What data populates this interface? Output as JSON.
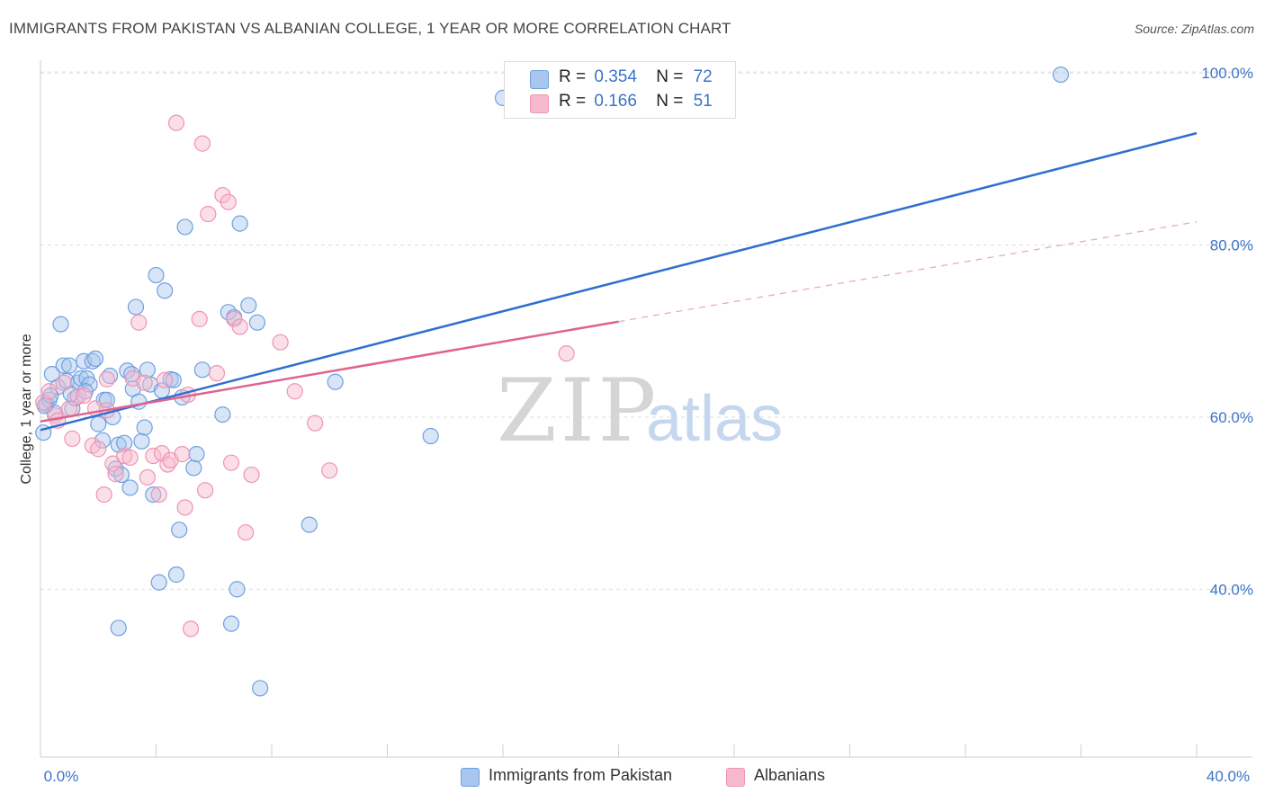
{
  "title": "IMMIGRANTS FROM PAKISTAN VS ALBANIAN COLLEGE, 1 YEAR OR MORE CORRELATION CHART",
  "source": "Source: ZipAtlas.com",
  "watermark": {
    "zip": "ZIP",
    "atlas": "atlas"
  },
  "legend": {
    "rows": [
      {
        "r_label": "R =",
        "r_value": "0.354",
        "n_label": "N =",
        "n_value": "72",
        "color": "#a9c6ee"
      },
      {
        "r_label": "R =",
        "r_value": "0.166",
        "n_label": "N =",
        "n_value": "51",
        "color": "#f6b9cd"
      }
    ]
  },
  "bottom_legend": {
    "items": [
      {
        "label": "Immigrants from Pakistan",
        "color": "#a9c6ee"
      },
      {
        "label": "Albanians",
        "color": "#f6b9cd"
      }
    ]
  },
  "chart_data": {
    "type": "scatter",
    "title": "IMMIGRANTS FROM PAKISTAN VS ALBANIAN COLLEGE, 1 YEAR OR MORE CORRELATION CHART",
    "xlabel": "",
    "ylabel": "College, 1 year or more",
    "x_tick_labels": [
      "0.0%",
      "40.0%"
    ],
    "y_tick_labels": [
      "100.0%",
      "80.0%",
      "60.0%",
      "40.0%"
    ],
    "y_ticks": [
      100,
      80,
      60,
      40
    ],
    "xlim": [
      0,
      40
    ],
    "ylim": [
      20.5,
      102
    ],
    "grid": true,
    "legend_placement": "top-center",
    "series": [
      {
        "name": "Immigrants from Pakistan",
        "color": "#6fa0e0",
        "fill": "rgba(169,198,238,0.45)",
        "trend": {
          "x": [
            0,
            40
          ],
          "y": [
            58.5,
            93.0
          ],
          "dashed_from_x": null
        },
        "points": [
          [
            0.1,
            58.2
          ],
          [
            0.2,
            61.5
          ],
          [
            0.3,
            62.0
          ],
          [
            0.4,
            65.0
          ],
          [
            0.5,
            60.5
          ],
          [
            0.6,
            63.5
          ],
          [
            0.7,
            70.8
          ],
          [
            0.8,
            66.0
          ],
          [
            0.9,
            64.2
          ],
          [
            1.0,
            66.0
          ],
          [
            1.1,
            61.0
          ],
          [
            1.2,
            62.2
          ],
          [
            1.3,
            64.0
          ],
          [
            1.4,
            64.5
          ],
          [
            1.5,
            66.5
          ],
          [
            1.6,
            64.5
          ],
          [
            1.7,
            63.8
          ],
          [
            1.8,
            66.5
          ],
          [
            1.9,
            66.8
          ],
          [
            2.0,
            59.2
          ],
          [
            2.2,
            62.0
          ],
          [
            2.3,
            62.0
          ],
          [
            2.4,
            64.8
          ],
          [
            2.5,
            60.0
          ],
          [
            2.6,
            54.0
          ],
          [
            2.7,
            56.8
          ],
          [
            2.8,
            53.3
          ],
          [
            2.9,
            57.0
          ],
          [
            3.0,
            65.4
          ],
          [
            3.1,
            51.8
          ],
          [
            3.2,
            63.3
          ],
          [
            3.3,
            72.8
          ],
          [
            3.4,
            61.8
          ],
          [
            3.5,
            57.2
          ],
          [
            3.6,
            58.8
          ],
          [
            3.7,
            65.5
          ],
          [
            3.8,
            63.8
          ],
          [
            3.9,
            51.0
          ],
          [
            4.0,
            76.5
          ],
          [
            4.1,
            40.8
          ],
          [
            4.2,
            63.1
          ],
          [
            4.3,
            74.7
          ],
          [
            4.5,
            64.4
          ],
          [
            4.7,
            41.7
          ],
          [
            4.8,
            46.9
          ],
          [
            4.9,
            62.3
          ],
          [
            5.0,
            82.1
          ],
          [
            5.3,
            54.1
          ],
          [
            5.4,
            55.7
          ],
          [
            5.6,
            65.5
          ],
          [
            6.3,
            60.3
          ],
          [
            6.5,
            72.2
          ],
          [
            6.6,
            36.0
          ],
          [
            6.7,
            71.6
          ],
          [
            6.8,
            40.0
          ],
          [
            6.9,
            82.5
          ],
          [
            7.2,
            73.0
          ],
          [
            7.5,
            71.0
          ],
          [
            7.6,
            28.5
          ],
          [
            9.3,
            47.5
          ],
          [
            10.2,
            64.1
          ],
          [
            2.7,
            35.5
          ],
          [
            13.5,
            57.8
          ],
          [
            16.0,
            97.1
          ],
          [
            35.3,
            99.8
          ],
          [
            0.15,
            61.3
          ],
          [
            0.35,
            62.5
          ],
          [
            1.05,
            62.7
          ],
          [
            1.55,
            63.0
          ],
          [
            3.15,
            65.0
          ],
          [
            2.15,
            57.3
          ],
          [
            4.6,
            64.3
          ]
        ]
      },
      {
        "name": "Albanians",
        "color": "#ef94b2",
        "fill": "rgba(246,185,205,0.45)",
        "trend": {
          "x": [
            0,
            40
          ],
          "y": [
            59.5,
            82.7
          ],
          "dashed_from_x": 20.0
        },
        "points": [
          [
            0.1,
            61.7
          ],
          [
            0.3,
            63.0
          ],
          [
            0.5,
            60.2
          ],
          [
            0.6,
            59.6
          ],
          [
            0.8,
            64.0
          ],
          [
            1.0,
            61.0
          ],
          [
            1.1,
            57.5
          ],
          [
            1.3,
            62.4
          ],
          [
            1.5,
            62.5
          ],
          [
            1.8,
            56.7
          ],
          [
            1.9,
            61.0
          ],
          [
            2.0,
            56.3
          ],
          [
            2.2,
            51.0
          ],
          [
            2.3,
            64.4
          ],
          [
            2.5,
            54.6
          ],
          [
            2.6,
            53.4
          ],
          [
            2.9,
            55.5
          ],
          [
            3.1,
            55.3
          ],
          [
            3.2,
            64.5
          ],
          [
            3.4,
            71.0
          ],
          [
            3.6,
            64.0
          ],
          [
            3.7,
            53.0
          ],
          [
            3.9,
            55.5
          ],
          [
            4.1,
            51.0
          ],
          [
            4.2,
            55.8
          ],
          [
            4.3,
            64.3
          ],
          [
            4.4,
            54.5
          ],
          [
            4.5,
            55.0
          ],
          [
            4.7,
            94.2
          ],
          [
            4.9,
            55.7
          ],
          [
            5.0,
            49.5
          ],
          [
            5.1,
            62.6
          ],
          [
            5.2,
            35.4
          ],
          [
            5.6,
            91.8
          ],
          [
            5.7,
            51.5
          ],
          [
            5.8,
            83.6
          ],
          [
            6.1,
            65.1
          ],
          [
            6.3,
            85.8
          ],
          [
            6.6,
            54.7
          ],
          [
            6.7,
            71.4
          ],
          [
            6.9,
            70.5
          ],
          [
            7.1,
            46.6
          ],
          [
            7.3,
            53.3
          ],
          [
            8.3,
            68.7
          ],
          [
            8.8,
            63.0
          ],
          [
            9.5,
            59.3
          ],
          [
            10.0,
            53.8
          ],
          [
            18.2,
            67.4
          ],
          [
            5.5,
            71.4
          ],
          [
            6.5,
            85.0
          ],
          [
            2.3,
            60.8
          ]
        ]
      }
    ]
  }
}
